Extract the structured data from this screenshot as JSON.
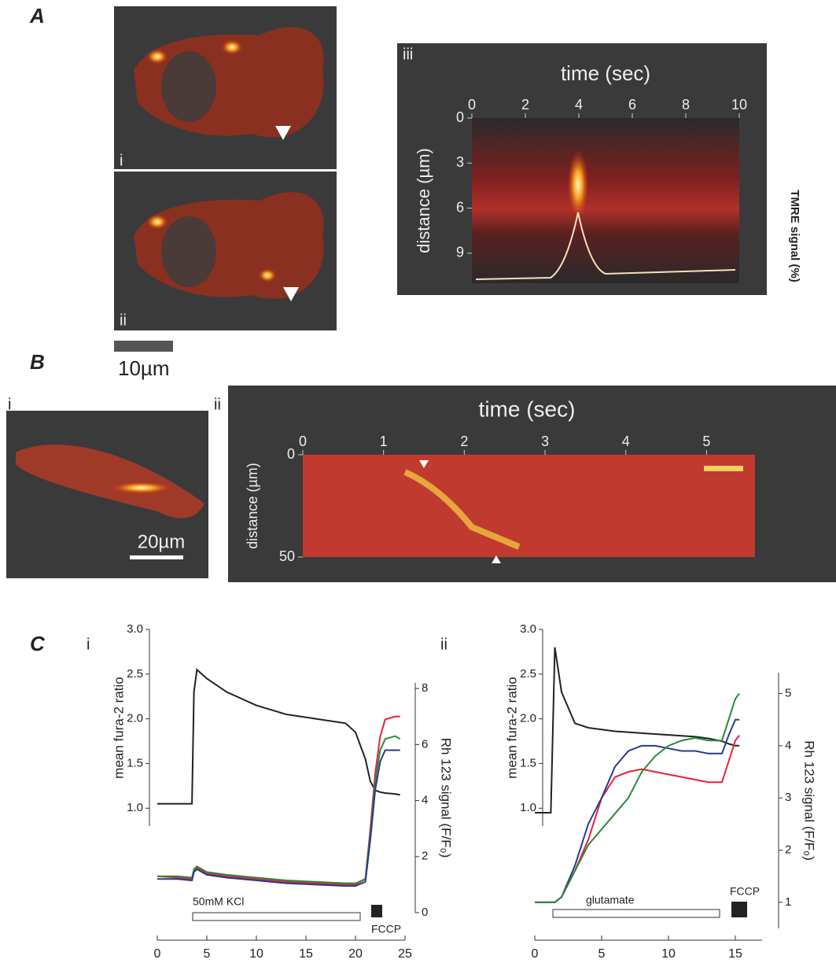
{
  "figure": {
    "A": {
      "label": "A",
      "image_labels": [
        "i",
        "ii",
        "iii"
      ],
      "scale_bar": "10µm",
      "kymograph": {
        "x_label": "time (sec)",
        "xlim": [
          0,
          10
        ],
        "xticks": [
          0,
          2,
          4,
          6,
          8,
          10
        ],
        "y_label": "distance (µm)",
        "ylim": [
          0,
          11
        ],
        "yticks": [
          0,
          3,
          6,
          9
        ],
        "y2_label": "TMRE signal (%)"
      }
    },
    "B": {
      "label": "B",
      "image_labels": [
        "i",
        "ii"
      ],
      "scale_bar": "20µm",
      "kymograph": {
        "x_label": "time (sec)",
        "xlim": [
          0,
          5.6
        ],
        "xticks": [
          0,
          1,
          2,
          3,
          4,
          5
        ],
        "y_label": "distance (µm)",
        "ylim": [
          0,
          50
        ],
        "yticks": [
          0,
          50
        ]
      }
    },
    "C": {
      "label": "C",
      "chart_labels": [
        "i",
        "ii"
      ]
    }
  },
  "chart_data": [
    {
      "type": "line",
      "y_label": "mean fura-2 ratio",
      "y2_label": "Rh 123 signal (F/F₀)",
      "annotations": [
        "50mM KCl",
        "FCCP"
      ],
      "xlim": [
        0,
        25
      ],
      "xticks": [
        0,
        5,
        10,
        15,
        20,
        25
      ],
      "ylim": [
        0.8,
        3.0
      ],
      "yticks": [
        {
          "value": 1,
          "label": "1.0"
        },
        1.5,
        {
          "value": 2,
          "label": "2.0"
        },
        2.5,
        {
          "value": 3,
          "label": "3.0"
        }
      ],
      "y2lim": [
        0,
        8.2
      ],
      "y2ticks": [
        0,
        2,
        4,
        6,
        8
      ],
      "x": [
        0,
        2,
        3.5,
        3.7,
        4,
        5,
        7,
        10,
        13,
        16,
        19,
        20,
        21,
        21.5,
        22,
        22.5,
        23,
        24,
        24.5
      ],
      "series": [
        {
          "color": "#222222",
          "values": [
            1.05,
            1.05,
            1.05,
            2.3,
            2.55,
            2.45,
            2.3,
            2.15,
            2.05,
            2.0,
            1.95,
            1.85,
            1.55,
            1.3,
            1.2,
            1.18,
            1.17,
            1.16,
            1.15
          ]
        },
        {
          "color": "#e8203a",
          "axis": "y2",
          "values": [
            1.3,
            1.25,
            1.2,
            1.5,
            1.6,
            1.4,
            1.3,
            1.2,
            1.1,
            1.05,
            1.0,
            1.0,
            1.2,
            3.0,
            5.0,
            6.3,
            6.9,
            7.0,
            7.0
          ]
        },
        {
          "color": "#2a8a3a",
          "axis": "y2",
          "values": [
            1.3,
            1.3,
            1.25,
            1.55,
            1.65,
            1.45,
            1.35,
            1.25,
            1.15,
            1.1,
            1.05,
            1.05,
            1.2,
            2.8,
            4.7,
            5.8,
            6.2,
            6.3,
            6.2
          ]
        },
        {
          "color": "#2a3a8a",
          "axis": "y2",
          "values": [
            1.2,
            1.2,
            1.15,
            1.45,
            1.55,
            1.35,
            1.25,
            1.15,
            1.05,
            1.0,
            0.95,
            0.95,
            1.1,
            2.6,
            4.4,
            5.4,
            5.8,
            5.8,
            5.8
          ]
        }
      ]
    },
    {
      "type": "line",
      "y_label": "mean fura-2 ratio",
      "y2_label": "Rh 123 signal (F/F₀)",
      "annotations": [
        "glutamate",
        "FCCP"
      ],
      "xlim": [
        0,
        17
      ],
      "xticks": [
        0,
        5,
        10,
        15
      ],
      "ylim": [
        0.8,
        3.0
      ],
      "yticks": [
        {
          "value": 1,
          "label": "1.0"
        },
        1.5,
        {
          "value": 2,
          "label": "2.0"
        },
        2.5,
        {
          "value": 3,
          "label": "3.0"
        }
      ],
      "y2lim": [
        0.5,
        5.4
      ],
      "y2ticks": [
        1,
        2,
        3,
        4,
        5
      ],
      "x": [
        0,
        1,
        1.2,
        1.5,
        2,
        3,
        4,
        5,
        6,
        7,
        8,
        9,
        10,
        11,
        12,
        13,
        14,
        14.5,
        15,
        15.3
      ],
      "series": [
        {
          "color": "#222222",
          "values": [
            0.95,
            0.95,
            0.95,
            2.8,
            2.3,
            1.95,
            1.9,
            1.88,
            1.86,
            1.85,
            1.84,
            1.83,
            1.82,
            1.81,
            1.8,
            1.78,
            1.75,
            1.72,
            1.7,
            1.7
          ]
        },
        {
          "color": "#e8203a",
          "axis": "y2",
          "values": [
            1,
            1,
            1,
            1,
            1.1,
            1.6,
            2.2,
            3.0,
            3.4,
            3.5,
            3.55,
            3.5,
            3.45,
            3.4,
            3.35,
            3.3,
            3.3,
            3.7,
            4.1,
            4.2
          ]
        },
        {
          "color": "#2a3a8a",
          "axis": "y2",
          "values": [
            1,
            1,
            1,
            1,
            1.1,
            1.7,
            2.5,
            3.0,
            3.6,
            3.9,
            4.0,
            4.0,
            3.95,
            3.9,
            3.9,
            3.85,
            3.85,
            4.2,
            4.5,
            4.5
          ]
        },
        {
          "color": "#2a8a3a",
          "axis": "y2",
          "values": [
            1,
            1,
            1,
            1,
            1.1,
            1.6,
            2.1,
            2.4,
            2.7,
            3.0,
            3.5,
            3.8,
            4.0,
            4.1,
            4.15,
            4.1,
            4.1,
            4.5,
            4.9,
            5.0
          ]
        }
      ]
    }
  ]
}
